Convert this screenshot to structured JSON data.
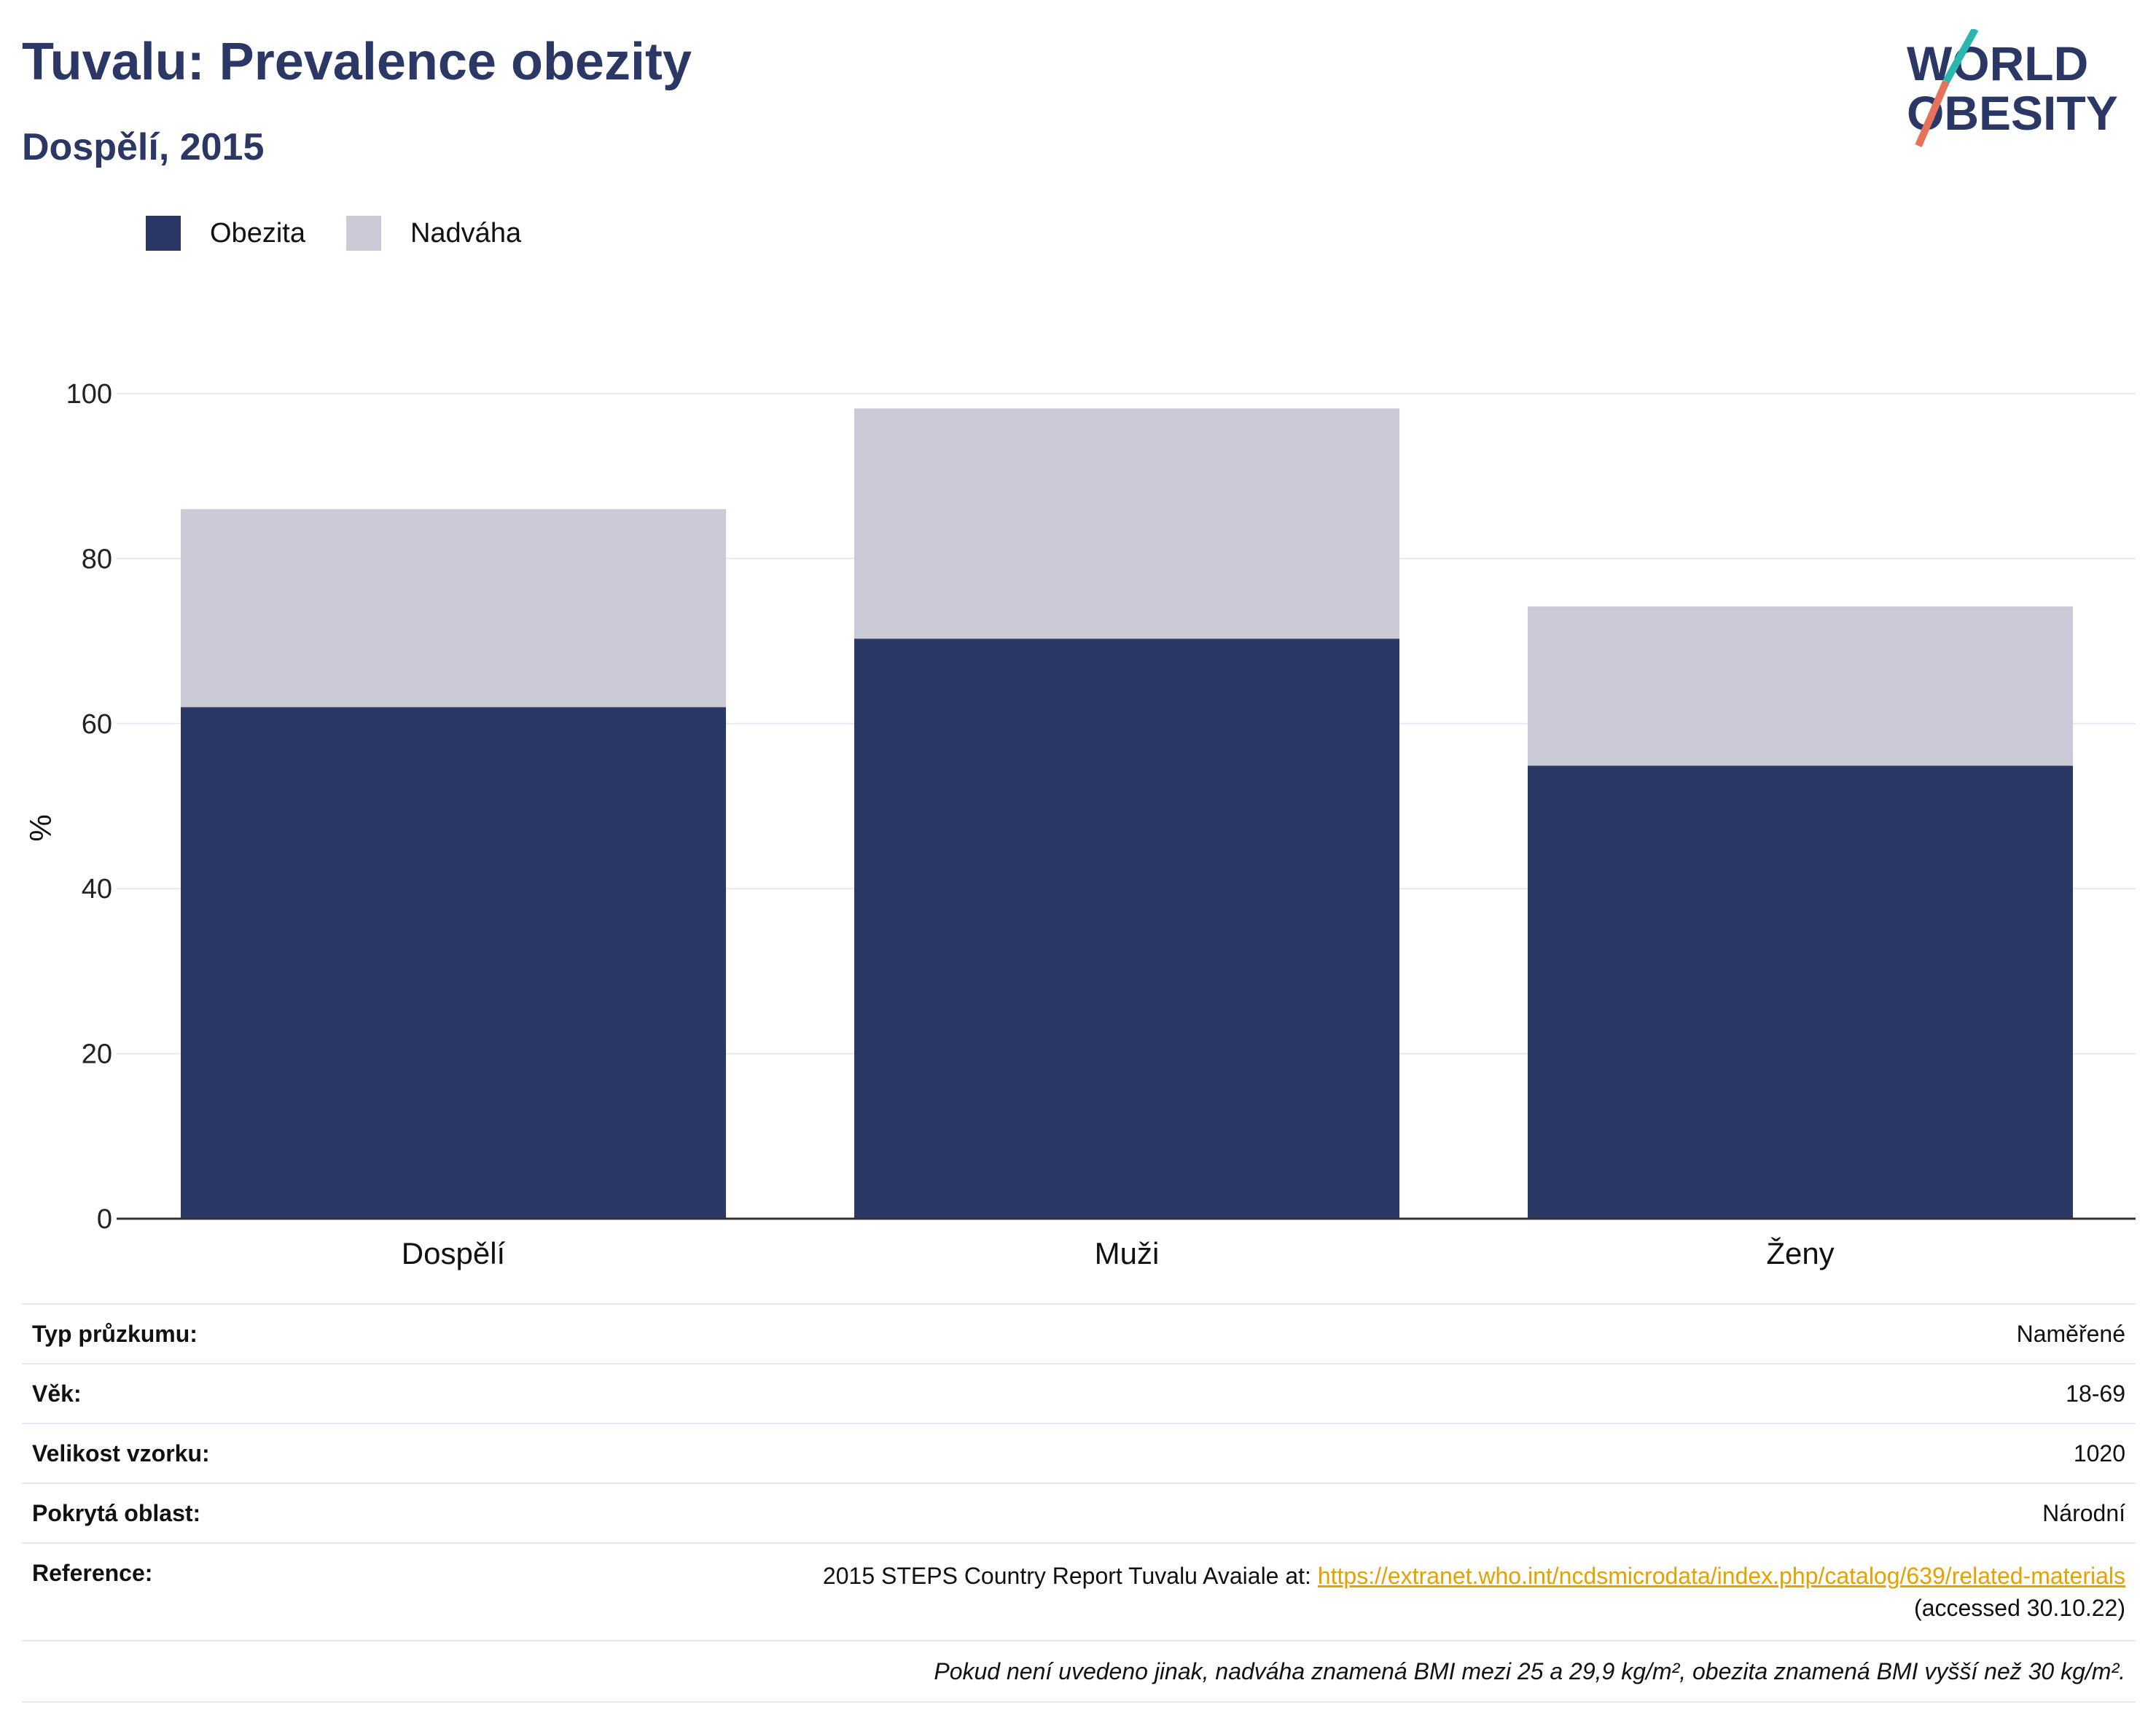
{
  "header": {
    "title": "Tuvalu: Prevalence obezity",
    "subtitle": "Dospělí, 2015",
    "logo_text": "WORLD OBESITY"
  },
  "colors": {
    "obesity": "#2b3764",
    "overweight": "#cacbd6",
    "title": "#2b3764",
    "link": "#e5a100"
  },
  "legend": {
    "items": [
      {
        "label": "Obezita",
        "color": "#2b3764"
      },
      {
        "label": "Nadváha",
        "color": "#cacbd6"
      }
    ]
  },
  "chart_data": {
    "type": "bar",
    "stacked": true,
    "categories": [
      "Dospělí",
      "Muži",
      "Ženy"
    ],
    "series": [
      {
        "name": "Obezita",
        "values": [
          62.0,
          70.3,
          54.9
        ]
      },
      {
        "name": "Nadváha",
        "values": [
          24.0,
          27.9,
          19.3
        ]
      }
    ],
    "ylabel": "%",
    "ylim": [
      0,
      100
    ],
    "yticks": [
      0,
      20,
      40,
      60,
      80,
      100
    ],
    "grid": true,
    "legend_position": "top-left"
  },
  "info": {
    "survey_type_label": "Typ průzkumu:",
    "survey_type_value": "Naměřené",
    "age_label": "Věk:",
    "age_value": "18-69",
    "sample_label": "Velikost vzorku:",
    "sample_value": "1020",
    "area_label": "Pokrytá oblast:",
    "area_value": "Národní",
    "reference_label": "Reference:",
    "reference_text": "2015 STEPS Country Report Tuvalu Avaiale at: ",
    "reference_link": "https://extranet.who.int/ncdsmicrodata/index.php/catalog/639/related-materials",
    "reference_accessed": "(accessed 30.10.22)",
    "note": "Pokud není uvedeno jinak, nadváha znamená BMI mezi 25 a 29,9 kg/m², obezita znamená BMI vyšší než 30 kg/m²."
  }
}
